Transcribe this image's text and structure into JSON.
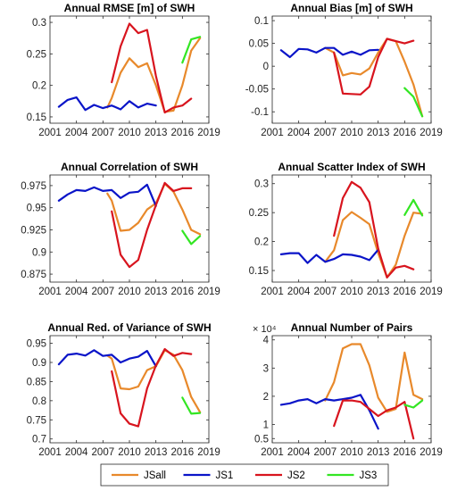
{
  "colors": {
    "JSall": "#E8892B",
    "JS1": "#0A14C8",
    "JS2": "#D8141E",
    "JS3": "#33E623"
  },
  "legend": [
    "JSall",
    "JS1",
    "JS2",
    "JS3"
  ],
  "chart_data": [
    {
      "type": "line",
      "title": "Annual RMSE [m] of SWH",
      "xlim": [
        2001,
        2019
      ],
      "ylim": [
        0.14,
        0.31
      ],
      "xticks": [
        "2001",
        "2004",
        "2007",
        "2010",
        "2013",
        "2016",
        "2019"
      ],
      "yticks": [
        "0.15",
        "0.2",
        "0.25",
        "0.3"
      ],
      "series": [
        {
          "name": "JSall",
          "x": [
            2007.5,
            2008,
            2009,
            2010,
            2011,
            2012,
            2013,
            2014,
            2015,
            2016,
            2017,
            2018
          ],
          "y": [
            0.165,
            0.18,
            0.22,
            0.243,
            0.229,
            0.235,
            0.2,
            0.158,
            0.16,
            0.2,
            0.255,
            0.275
          ]
        },
        {
          "name": "JS1",
          "x": [
            2002,
            2003,
            2004,
            2005,
            2006,
            2007,
            2008,
            2009,
            2010,
            2011,
            2012,
            2013
          ],
          "y": [
            0.166,
            0.177,
            0.181,
            0.161,
            0.169,
            0.164,
            0.168,
            0.162,
            0.175,
            0.165,
            0.171,
            0.168
          ]
        },
        {
          "name": "JS2",
          "x": [
            2008,
            2009,
            2010,
            2011,
            2012,
            2013,
            2014,
            2015,
            2016,
            2017
          ],
          "y": [
            0.205,
            0.262,
            0.298,
            0.283,
            0.288,
            0.215,
            0.157,
            0.165,
            0.168,
            0.179
          ]
        },
        {
          "name": "JS3",
          "x": [
            2016,
            2017,
            2018
          ],
          "y": [
            0.236,
            0.273,
            0.277
          ]
        }
      ]
    },
    {
      "type": "line",
      "title": "Annual Bias [m] of SWH",
      "xlim": [
        2001,
        2019
      ],
      "ylim": [
        -0.125,
        0.11
      ],
      "xticks": [
        "2001",
        "2004",
        "2007",
        "2010",
        "2013",
        "2016",
        "2019"
      ],
      "yticks": [
        "0.1",
        "0.05",
        "0",
        "-0.05",
        "-0.1"
      ],
      "series": [
        {
          "name": "JSall",
          "x": [
            2007,
            2008,
            2009,
            2010,
            2011,
            2012,
            2013,
            2014,
            2015,
            2016,
            2017,
            2018
          ],
          "y": [
            0.04,
            0.03,
            -0.02,
            -0.015,
            -0.018,
            -0.005,
            0.03,
            0.06,
            0.055,
            0.01,
            -0.04,
            -0.11
          ]
        },
        {
          "name": "JS1",
          "x": [
            2002,
            2003,
            2004,
            2005,
            2006,
            2007,
            2008,
            2009,
            2010,
            2011,
            2012,
            2013
          ],
          "y": [
            0.035,
            0.02,
            0.038,
            0.037,
            0.03,
            0.04,
            0.04,
            0.025,
            0.032,
            0.025,
            0.035,
            0.036
          ]
        },
        {
          "name": "JS2",
          "x": [
            2008,
            2009,
            2010,
            2011,
            2012,
            2013,
            2014,
            2015,
            2016,
            2017
          ],
          "y": [
            0.03,
            -0.06,
            -0.061,
            -0.062,
            -0.045,
            0.02,
            0.06,
            0.055,
            0.05,
            0.056
          ]
        },
        {
          "name": "JS3",
          "x": [
            2016,
            2017,
            2018
          ],
          "y": [
            -0.048,
            -0.067,
            -0.11
          ]
        }
      ]
    },
    {
      "type": "line",
      "title": "Annual Correlation of SWH",
      "xlim": [
        2001,
        2019
      ],
      "ylim": [
        0.866,
        0.987
      ],
      "xticks": [
        "2001",
        "2004",
        "2007",
        "2010",
        "2013",
        "2016",
        "2019"
      ],
      "yticks": [
        "0.975",
        "0.95",
        "0.925",
        "0.9",
        "0.875"
      ],
      "series": [
        {
          "name": "JSall",
          "x": [
            2007.5,
            2008,
            2009,
            2010,
            2011,
            2012,
            2013,
            2014,
            2015,
            2016,
            2017,
            2018
          ],
          "y": [
            0.966,
            0.958,
            0.924,
            0.925,
            0.933,
            0.948,
            0.955,
            0.977,
            0.968,
            0.948,
            0.925,
            0.92
          ]
        },
        {
          "name": "JS1",
          "x": [
            2002,
            2003,
            2004,
            2005,
            2006,
            2007,
            2008,
            2009,
            2010,
            2011,
            2012,
            2013
          ],
          "y": [
            0.958,
            0.965,
            0.97,
            0.969,
            0.973,
            0.969,
            0.97,
            0.961,
            0.967,
            0.968,
            0.976,
            0.952
          ]
        },
        {
          "name": "JS2",
          "x": [
            2008,
            2009,
            2010,
            2011,
            2012,
            2013,
            2014,
            2015,
            2016,
            2017
          ],
          "y": [
            0.946,
            0.897,
            0.883,
            0.891,
            0.925,
            0.953,
            0.978,
            0.969,
            0.972,
            0.972
          ]
        },
        {
          "name": "JS3",
          "x": [
            2016,
            2017,
            2018
          ],
          "y": [
            0.924,
            0.909,
            0.918
          ]
        }
      ]
    },
    {
      "type": "line",
      "title": "Annual Scatter Index of SWH",
      "xlim": [
        2001,
        2019
      ],
      "ylim": [
        0.13,
        0.315
      ],
      "xticks": [
        "2001",
        "2004",
        "2007",
        "2010",
        "2013",
        "2016",
        "2019"
      ],
      "yticks": [
        "0.3",
        "0.25",
        "0.2",
        "0.15"
      ],
      "series": [
        {
          "name": "JSall",
          "x": [
            2007,
            2008,
            2009,
            2010,
            2011,
            2012,
            2013,
            2014,
            2015,
            2016,
            2017,
            2018
          ],
          "y": [
            0.165,
            0.185,
            0.237,
            0.251,
            0.241,
            0.23,
            0.18,
            0.138,
            0.16,
            0.21,
            0.25,
            0.248
          ]
        },
        {
          "name": "JS1",
          "x": [
            2002,
            2003,
            2004,
            2005,
            2006,
            2007,
            2008,
            2009,
            2010,
            2011,
            2012,
            2013
          ],
          "y": [
            0.178,
            0.18,
            0.18,
            0.163,
            0.177,
            0.165,
            0.17,
            0.178,
            0.177,
            0.174,
            0.168,
            0.186
          ]
        },
        {
          "name": "JS2",
          "x": [
            2008,
            2009,
            2010,
            2011,
            2012,
            2013,
            2014,
            2015,
            2016,
            2017
          ],
          "y": [
            0.21,
            0.275,
            0.303,
            0.293,
            0.268,
            0.188,
            0.138,
            0.155,
            0.158,
            0.152
          ]
        },
        {
          "name": "JS3",
          "x": [
            2016,
            2017,
            2018
          ],
          "y": [
            0.246,
            0.272,
            0.245
          ]
        }
      ]
    },
    {
      "type": "line",
      "title": "Annual Red. of Variance of SWH",
      "xlim": [
        2001,
        2019
      ],
      "ylim": [
        0.69,
        0.97
      ],
      "xticks": [
        "2001",
        "2004",
        "2007",
        "2010",
        "2013",
        "2016",
        "2019"
      ],
      "yticks": [
        "0.95",
        "0.9",
        "0.85",
        "0.8",
        "0.75",
        "0.7"
      ],
      "series": [
        {
          "name": "JSall",
          "x": [
            2007.5,
            2008,
            2009,
            2010,
            2011,
            2012,
            2013,
            2014,
            2015,
            2016,
            2017,
            2018
          ],
          "y": [
            0.918,
            0.91,
            0.832,
            0.83,
            0.837,
            0.88,
            0.89,
            0.932,
            0.92,
            0.88,
            0.81,
            0.77
          ]
        },
        {
          "name": "JS1",
          "x": [
            2002,
            2003,
            2004,
            2005,
            2006,
            2007,
            2008,
            2009,
            2010,
            2011,
            2012,
            2013
          ],
          "y": [
            0.895,
            0.92,
            0.923,
            0.918,
            0.932,
            0.917,
            0.92,
            0.9,
            0.91,
            0.915,
            0.93,
            0.89
          ]
        },
        {
          "name": "JS2",
          "x": [
            2008,
            2009,
            2010,
            2011,
            2012,
            2013,
            2014,
            2015,
            2016,
            2017
          ],
          "y": [
            0.877,
            0.767,
            0.74,
            0.733,
            0.832,
            0.892,
            0.935,
            0.917,
            0.925,
            0.922
          ]
        },
        {
          "name": "JS3",
          "x": [
            2016,
            2017,
            2018
          ],
          "y": [
            0.808,
            0.766,
            0.768
          ]
        }
      ]
    },
    {
      "type": "line",
      "title": "Annual Number of Pairs",
      "exponent": "× 10⁴",
      "xlim": [
        2001,
        2019
      ],
      "ylim": [
        0.35,
        4.15
      ],
      "xticks": [
        "2001",
        "2004",
        "2007",
        "2010",
        "2013",
        "2016",
        "2019"
      ],
      "yticks": [
        "4",
        "3",
        "2",
        "1",
        "0.5"
      ],
      "series": [
        {
          "name": "JSall",
          "x": [
            2007,
            2008,
            2009,
            2010,
            2011,
            2012,
            2013,
            2014,
            2015,
            2016,
            2017,
            2018
          ],
          "y": [
            1.85,
            2.5,
            3.7,
            3.85,
            3.85,
            3.1,
            1.95,
            1.45,
            1.55,
            3.55,
            2.05,
            1.9
          ]
        },
        {
          "name": "JS1",
          "x": [
            2002,
            2003,
            2004,
            2005,
            2006,
            2007,
            2008,
            2009,
            2010,
            2011,
            2012,
            2013
          ],
          "y": [
            1.7,
            1.75,
            1.85,
            1.9,
            1.75,
            1.9,
            1.85,
            1.9,
            1.95,
            2.05,
            1.5,
            0.85
          ]
        },
        {
          "name": "JS2",
          "x": [
            2008,
            2009,
            2010,
            2011,
            2012,
            2013,
            2014,
            2015,
            2016,
            2017
          ],
          "y": [
            0.95,
            1.85,
            1.85,
            1.8,
            1.55,
            1.3,
            1.5,
            1.6,
            1.8,
            0.5
          ]
        },
        {
          "name": "JS3",
          "x": [
            2016,
            2017,
            2018
          ],
          "y": [
            1.7,
            1.6,
            1.85
          ]
        }
      ]
    }
  ]
}
